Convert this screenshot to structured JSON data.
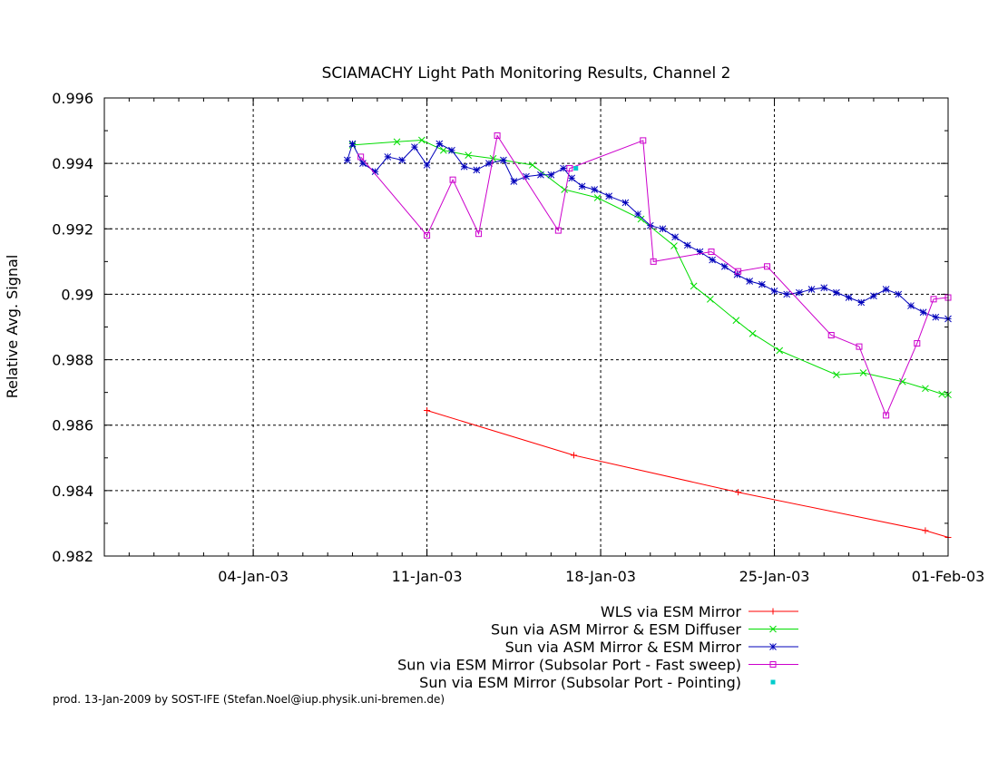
{
  "chart_data": {
    "type": "line",
    "title": "SCIAMACHY Light Path Monitoring Results, Channel 2",
    "xlabel": "",
    "ylabel": "Relative Avg. Signal",
    "x_axis": {
      "type": "date",
      "range": [
        "2002-12-29T00:00",
        "2003-02-01T00:00"
      ],
      "ticks": [
        "04-Jan-03",
        "11-Jan-03",
        "18-Jan-03",
        "25-Jan-03",
        "01-Feb-03"
      ]
    },
    "ylim": [
      0.982,
      0.996
    ],
    "y_ticks": [
      "0.982",
      "0.984",
      "0.986",
      "0.988",
      "0.99",
      "0.992",
      "0.994",
      "0.996"
    ],
    "grid": true,
    "legend_position": "below",
    "series": [
      {
        "name": "WLS via ESM Mirror",
        "color": "#ff0000",
        "marker": "plus",
        "points": [
          [
            "2003-01-11T00:00",
            0.98645
          ],
          [
            "2003-01-16T22:00",
            0.98508
          ],
          [
            "2003-01-23T13:00",
            0.98395
          ],
          [
            "2003-01-31T02:00",
            0.98278
          ],
          [
            "2003-02-01T00:00",
            0.98257
          ]
        ]
      },
      {
        "name": "Sun via ASM Mirror & ESM Diffuser",
        "color": "#00dd00",
        "marker": "cross",
        "points": [
          [
            "2003-01-08T00:00",
            0.99456
          ],
          [
            "2003-01-09T19:00",
            0.99466
          ],
          [
            "2003-01-10T19:00",
            0.99471
          ],
          [
            "2003-01-11T16:00",
            0.9944
          ],
          [
            "2003-01-12T16:00",
            0.99425
          ],
          [
            "2003-01-13T16:00",
            0.99415
          ],
          [
            "2003-01-15T06:00",
            0.99395
          ],
          [
            "2003-01-16T13:00",
            0.9932
          ],
          [
            "2003-01-17T21:00",
            0.99295
          ],
          [
            "2003-01-19T15:00",
            0.9923
          ],
          [
            "2003-01-20T23:00",
            0.99148
          ],
          [
            "2003-01-21T18:00",
            0.99025
          ],
          [
            "2003-01-22T10:00",
            0.98985
          ],
          [
            "2003-01-23T11:00",
            0.9892
          ],
          [
            "2003-01-24T03:00",
            0.9888
          ],
          [
            "2003-01-25T05:00",
            0.98828
          ],
          [
            "2003-01-27T12:00",
            0.98754
          ],
          [
            "2003-01-28T14:00",
            0.9876
          ],
          [
            "2003-01-30T04:00",
            0.98733
          ],
          [
            "2003-01-31T02:00",
            0.98712
          ],
          [
            "2003-01-31T18:00",
            0.98695
          ],
          [
            "2003-02-01T00:00",
            0.98693
          ]
        ]
      },
      {
        "name": "Sun via ASM Mirror & ESM Mirror",
        "color": "#0000bb",
        "marker": "star",
        "points": [
          [
            "2003-01-07T19:00",
            0.9941
          ],
          [
            "2003-01-08T00:00",
            0.9946
          ],
          [
            "2003-01-08T10:00",
            0.994
          ],
          [
            "2003-01-08T22:00",
            0.99375
          ],
          [
            "2003-01-09T10:00",
            0.9942
          ],
          [
            "2003-01-10T00:00",
            0.9941
          ],
          [
            "2003-01-10T12:00",
            0.9945
          ],
          [
            "2003-01-11T00:00",
            0.99395
          ],
          [
            "2003-01-11T12:00",
            0.9946
          ],
          [
            "2003-01-12T00:00",
            0.9944
          ],
          [
            "2003-01-12T12:00",
            0.9939
          ],
          [
            "2003-01-13T00:00",
            0.9938
          ],
          [
            "2003-01-13T12:00",
            0.994
          ],
          [
            "2003-01-14T02:00",
            0.9941
          ],
          [
            "2003-01-14T12:00",
            0.99345
          ],
          [
            "2003-01-15T00:00",
            0.9936
          ],
          [
            "2003-01-15T14:00",
            0.99365
          ],
          [
            "2003-01-16T00:00",
            0.99365
          ],
          [
            "2003-01-16T12:00",
            0.99385
          ],
          [
            "2003-01-16T20:00",
            0.99355
          ],
          [
            "2003-01-17T06:00",
            0.9933
          ],
          [
            "2003-01-17T18:00",
            0.9932
          ],
          [
            "2003-01-18T08:00",
            0.993
          ],
          [
            "2003-01-19T00:00",
            0.9928
          ],
          [
            "2003-01-19T12:00",
            0.99245
          ],
          [
            "2003-01-20T00:00",
            0.9921
          ],
          [
            "2003-01-20T12:00",
            0.992
          ],
          [
            "2003-01-21T00:00",
            0.99175
          ],
          [
            "2003-01-21T12:00",
            0.9915
          ],
          [
            "2003-01-22T00:00",
            0.9913
          ],
          [
            "2003-01-22T12:00",
            0.99105
          ],
          [
            "2003-01-23T00:00",
            0.99085
          ],
          [
            "2003-01-23T12:00",
            0.9906
          ],
          [
            "2003-01-24T00:00",
            0.9904
          ],
          [
            "2003-01-24T12:00",
            0.9903
          ],
          [
            "2003-01-25T00:00",
            0.9901
          ],
          [
            "2003-01-25T12:00",
            0.99
          ],
          [
            "2003-01-26T00:00",
            0.99005
          ],
          [
            "2003-01-26T12:00",
            0.99015
          ],
          [
            "2003-01-27T00:00",
            0.9902
          ],
          [
            "2003-01-27T12:00",
            0.99005
          ],
          [
            "2003-01-28T00:00",
            0.9899
          ],
          [
            "2003-01-28T12:00",
            0.98975
          ],
          [
            "2003-01-29T00:00",
            0.98995
          ],
          [
            "2003-01-29T12:00",
            0.99015
          ],
          [
            "2003-01-30T00:00",
            0.99
          ],
          [
            "2003-01-30T12:00",
            0.98965
          ],
          [
            "2003-01-31T00:00",
            0.98945
          ],
          [
            "2003-01-31T12:00",
            0.9893
          ],
          [
            "2003-02-01T00:00",
            0.98925
          ]
        ]
      },
      {
        "name": "Sun via ESM Mirror (Subsolar Port - Fast sweep)",
        "color": "#cc00cc",
        "marker": "square",
        "points": [
          [
            "2003-01-08T08:00",
            0.9942
          ],
          [
            "2003-01-11T00:00",
            0.9918
          ],
          [
            "2003-01-12T01:00",
            0.9935
          ],
          [
            "2003-01-13T02:00",
            0.99185
          ],
          [
            "2003-01-13T20:00",
            0.99485
          ],
          [
            "2003-01-16T07:00",
            0.99195
          ],
          [
            "2003-01-16T18:00",
            0.99385
          ],
          [
            "2003-01-19T17:00",
            0.9947
          ],
          [
            "2003-01-20T03:00",
            0.991
          ],
          [
            "2003-01-22T11:00",
            0.9913
          ],
          [
            "2003-01-23T13:00",
            0.9907
          ],
          [
            "2003-01-24T17:00",
            0.99085
          ],
          [
            "2003-01-27T07:00",
            0.98875
          ],
          [
            "2003-01-28T10:00",
            0.9884
          ],
          [
            "2003-01-29T12:00",
            0.9863
          ],
          [
            "2003-01-30T18:00",
            0.9885
          ],
          [
            "2003-01-31T10:00",
            0.98985
          ],
          [
            "2003-02-01T00:00",
            0.9899
          ]
        ]
      },
      {
        "name": "Sun via ESM Mirror (Subsolar Port - Pointing)",
        "color": "#00cccc",
        "marker": "dot",
        "points": [
          [
            "2003-01-17T00:00",
            0.99385
          ]
        ]
      }
    ]
  },
  "credit": "prod. 13-Jan-2009 by SOST-IFE (Stefan.Noel@iup.physik.uni-bremen.de)"
}
